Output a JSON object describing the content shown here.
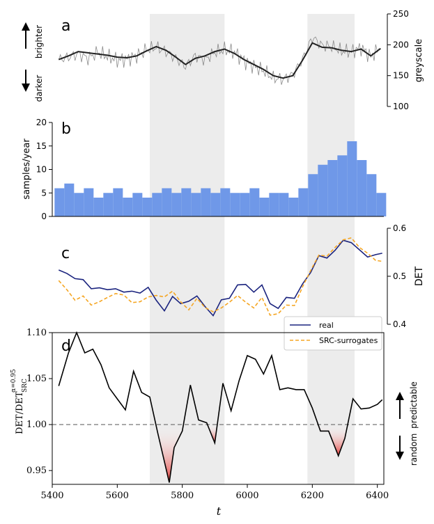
{
  "chart_data": [
    {
      "panel": "a",
      "type": "line",
      "ylabel": "greyscale",
      "ylim": [
        100,
        250
      ],
      "yticks": [
        100,
        150,
        200,
        250
      ],
      "side_labels": {
        "up": "brighter",
        "down": "darker"
      },
      "shaded_regions": [
        [
          5700,
          5930
        ],
        [
          6185,
          6330
        ]
      ],
      "series": [
        {
          "name": "raw greyscale",
          "color": "#8a8a8a",
          "x": [
            5420,
            5450,
            5480,
            5510,
            5540,
            5570,
            5600,
            5630,
            5660,
            5690,
            5720,
            5750,
            5780,
            5810,
            5840,
            5870,
            5900,
            5930,
            5960,
            5990,
            6020,
            6050,
            6080,
            6110,
            6140,
            6170,
            6200,
            6230,
            6260,
            6290,
            6320,
            6350,
            6380,
            6410
          ],
          "y": [
            176,
            180,
            185,
            178,
            188,
            181,
            175,
            177,
            182,
            192,
            196,
            189,
            178,
            165,
            182,
            176,
            188,
            192,
            188,
            174,
            165,
            158,
            146,
            144,
            152,
            176,
            212,
            199,
            197,
            190,
            189,
            195,
            181,
            196
          ]
        },
        {
          "name": "smoothed greyscale",
          "color": "#222222",
          "x": [
            5420,
            5450,
            5480,
            5510,
            5540,
            5570,
            5600,
            5630,
            5660,
            5690,
            5720,
            5750,
            5780,
            5810,
            5840,
            5870,
            5900,
            5930,
            5960,
            5990,
            6020,
            6050,
            6080,
            6110,
            6140,
            6170,
            6200,
            6230,
            6260,
            6290,
            6320,
            6350,
            6380,
            6410
          ],
          "y": [
            176,
            182,
            189,
            187,
            185,
            183,
            180,
            179,
            182,
            190,
            197,
            191,
            180,
            168,
            178,
            182,
            189,
            193,
            186,
            176,
            168,
            160,
            150,
            146,
            150,
            175,
            203,
            196,
            195,
            191,
            189,
            193,
            182,
            194
          ]
        }
      ]
    },
    {
      "panel": "b",
      "type": "bar",
      "ylabel": "samples/year",
      "ylim": [
        0,
        20
      ],
      "yticks": [
        0,
        5,
        10,
        15,
        20
      ],
      "color": "#6f98e8",
      "x": [
        5420,
        5450,
        5480,
        5510,
        5540,
        5570,
        5600,
        5630,
        5660,
        5690,
        5720,
        5750,
        5780,
        5810,
        5840,
        5870,
        5900,
        5930,
        5960,
        5990,
        6020,
        6050,
        6080,
        6110,
        6140,
        6170,
        6200,
        6230,
        6260,
        6290,
        6320,
        6350,
        6380,
        6410
      ],
      "values": [
        6,
        7,
        5,
        6,
        4,
        5,
        6,
        4,
        5,
        4,
        5,
        6,
        5,
        6,
        5,
        6,
        5,
        6,
        5,
        5,
        6,
        4,
        5,
        5,
        4,
        6,
        9,
        11,
        12,
        13,
        16,
        12,
        9,
        5
      ]
    },
    {
      "panel": "c",
      "type": "line",
      "ylabel": "DET",
      "ylim": [
        0.4,
        0.6
      ],
      "yticks": [
        0.4,
        0.5,
        0.6
      ],
      "series": [
        {
          "name": "real",
          "color": "#1a237e",
          "dash": "solid",
          "x": [
            5420,
            5445,
            5470,
            5495,
            5520,
            5545,
            5570,
            5595,
            5620,
            5645,
            5670,
            5695,
            5720,
            5745,
            5770,
            5795,
            5820,
            5845,
            5870,
            5895,
            5920,
            5945,
            5970,
            5995,
            6020,
            6045,
            6070,
            6095,
            6120,
            6145,
            6170,
            6195,
            6220,
            6245,
            6270,
            6295,
            6320,
            6345,
            6370,
            6395,
            6415
          ],
          "y": [
            0.513,
            0.506,
            0.495,
            0.493,
            0.474,
            0.476,
            0.472,
            0.474,
            0.467,
            0.469,
            0.465,
            0.477,
            0.45,
            0.428,
            0.458,
            0.443,
            0.448,
            0.459,
            0.437,
            0.418,
            0.451,
            0.454,
            0.482,
            0.483,
            0.467,
            0.482,
            0.443,
            0.433,
            0.456,
            0.454,
            0.484,
            0.508,
            0.543,
            0.538,
            0.554,
            0.575,
            0.57,
            0.555,
            0.54,
            0.545,
            0.548
          ]
        },
        {
          "name": "SRC-surrogates",
          "color": "#f5a623",
          "dash": "dashed",
          "x": [
            5420,
            5445,
            5470,
            5495,
            5520,
            5545,
            5570,
            5595,
            5620,
            5645,
            5670,
            5695,
            5720,
            5745,
            5770,
            5795,
            5820,
            5845,
            5870,
            5895,
            5920,
            5945,
            5970,
            5995,
            6020,
            6045,
            6070,
            6095,
            6120,
            6145,
            6170,
            6195,
            6220,
            6245,
            6270,
            6295,
            6320,
            6345,
            6370,
            6395,
            6415
          ],
          "y": [
            0.491,
            0.472,
            0.45,
            0.459,
            0.44,
            0.447,
            0.456,
            0.464,
            0.461,
            0.445,
            0.447,
            0.457,
            0.46,
            0.457,
            0.469,
            0.447,
            0.43,
            0.454,
            0.435,
            0.426,
            0.434,
            0.446,
            0.46,
            0.446,
            0.434,
            0.456,
            0.419,
            0.422,
            0.44,
            0.439,
            0.478,
            0.512,
            0.544,
            0.542,
            0.56,
            0.576,
            0.58,
            0.56,
            0.548,
            0.533,
            0.531
          ]
        }
      ]
    },
    {
      "panel": "d",
      "type": "line",
      "ylabel": "DET/DET_SRC^(α=0.95)",
      "xlabel": "t",
      "xlim": [
        5400,
        6420
      ],
      "xticks": [
        5400,
        5600,
        5800,
        6000,
        6200,
        6400
      ],
      "ylim": [
        0.935,
        1.1
      ],
      "yticks": [
        0.95,
        1.0,
        1.05,
        1.1
      ],
      "reference_line": 1.0,
      "side_labels": {
        "up": "predictable",
        "down": "random"
      },
      "series": [
        {
          "name": "ratio",
          "color": "#000000",
          "x": [
            5420,
            5450,
            5475,
            5500,
            5525,
            5550,
            5575,
            5600,
            5625,
            5650,
            5675,
            5700,
            5725,
            5760,
            5775,
            5800,
            5825,
            5850,
            5875,
            5900,
            5925,
            5950,
            5975,
            6000,
            6025,
            6050,
            6075,
            6100,
            6125,
            6150,
            6175,
            6200,
            6225,
            6250,
            6280,
            6300,
            6325,
            6350,
            6375,
            6400,
            6415
          ],
          "y": [
            1.042,
            1.078,
            1.1,
            1.078,
            1.082,
            1.065,
            1.04,
            1.028,
            1.016,
            1.058,
            1.035,
            1.03,
            0.99,
            0.937,
            0.975,
            0.993,
            1.043,
            1.005,
            1.002,
            0.98,
            1.045,
            1.015,
            1.048,
            1.075,
            1.071,
            1.055,
            1.075,
            1.038,
            1.04,
            1.038,
            1.038,
            1.018,
            0.993,
            0.993,
            0.966,
            0.985,
            1.028,
            1.017,
            1.018,
            1.022,
            1.027
          ]
        }
      ]
    }
  ],
  "panel_letters": {
    "a": "a",
    "b": "b",
    "c": "c",
    "d": "d"
  },
  "legend": {
    "real": "real",
    "surrogates": "SRC-surrogates"
  },
  "labels": {
    "greyscale": "greyscale",
    "brighter": "brighter",
    "darker": "darker",
    "samples_year": "samples/year",
    "det": "DET",
    "predictable": "predictable",
    "random": "random",
    "xlabel": "t",
    "ratio_main": "DET/DET",
    "ratio_sup": "α=0.95",
    "ratio_sub": "SRC"
  },
  "tick_labels": {
    "a": [
      "100",
      "150",
      "200",
      "250"
    ],
    "b": [
      "0",
      "5",
      "10",
      "15",
      "20"
    ],
    "c": [
      "0.4",
      "0.5",
      "0.6"
    ],
    "d": [
      "0.95",
      "1.00",
      "1.05",
      "1.10"
    ],
    "x": [
      "5400",
      "5600",
      "5800",
      "6000",
      "6200",
      "6400"
    ]
  },
  "colors": {
    "shade": "#ececec",
    "raw": "#8a8a8a",
    "smooth": "#222222",
    "bars": "#6f98e8",
    "real": "#1a237e",
    "surrogate": "#f5a623",
    "red_fill": "#e53935",
    "refline": "#777777"
  }
}
